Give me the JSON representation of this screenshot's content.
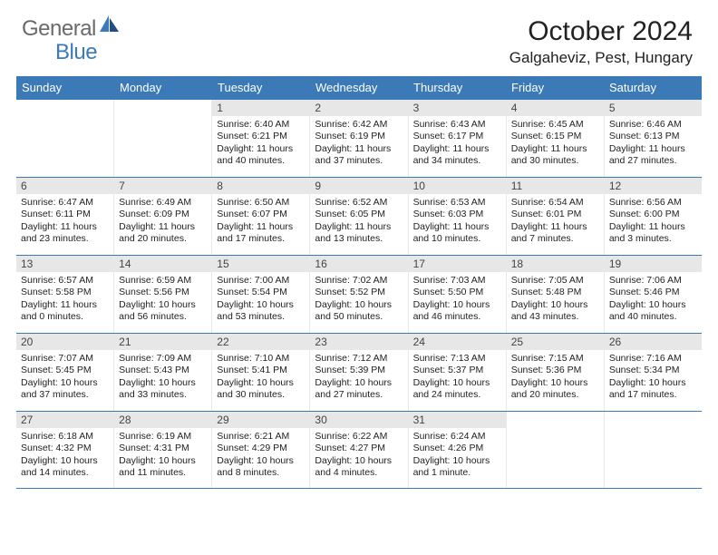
{
  "logo": {
    "general": "General",
    "blue": "Blue"
  },
  "title": "October 2024",
  "location": "Galgaheviz, Pest, Hungary",
  "colors": {
    "brand_blue": "#3b79b7",
    "logo_gray": "#6a6a6a",
    "daynum_bg": "#e7e7e7",
    "page_bg": "#ffffff",
    "text": "#222222"
  },
  "day_headers": [
    "Sunday",
    "Monday",
    "Tuesday",
    "Wednesday",
    "Thursday",
    "Friday",
    "Saturday"
  ],
  "weeks": [
    [
      {
        "num": "",
        "sunrise": "",
        "sunset": "",
        "daylight": ""
      },
      {
        "num": "",
        "sunrise": "",
        "sunset": "",
        "daylight": ""
      },
      {
        "num": "1",
        "sunrise": "Sunrise: 6:40 AM",
        "sunset": "Sunset: 6:21 PM",
        "daylight": "Daylight: 11 hours and 40 minutes."
      },
      {
        "num": "2",
        "sunrise": "Sunrise: 6:42 AM",
        "sunset": "Sunset: 6:19 PM",
        "daylight": "Daylight: 11 hours and 37 minutes."
      },
      {
        "num": "3",
        "sunrise": "Sunrise: 6:43 AM",
        "sunset": "Sunset: 6:17 PM",
        "daylight": "Daylight: 11 hours and 34 minutes."
      },
      {
        "num": "4",
        "sunrise": "Sunrise: 6:45 AM",
        "sunset": "Sunset: 6:15 PM",
        "daylight": "Daylight: 11 hours and 30 minutes."
      },
      {
        "num": "5",
        "sunrise": "Sunrise: 6:46 AM",
        "sunset": "Sunset: 6:13 PM",
        "daylight": "Daylight: 11 hours and 27 minutes."
      }
    ],
    [
      {
        "num": "6",
        "sunrise": "Sunrise: 6:47 AM",
        "sunset": "Sunset: 6:11 PM",
        "daylight": "Daylight: 11 hours and 23 minutes."
      },
      {
        "num": "7",
        "sunrise": "Sunrise: 6:49 AM",
        "sunset": "Sunset: 6:09 PM",
        "daylight": "Daylight: 11 hours and 20 minutes."
      },
      {
        "num": "8",
        "sunrise": "Sunrise: 6:50 AM",
        "sunset": "Sunset: 6:07 PM",
        "daylight": "Daylight: 11 hours and 17 minutes."
      },
      {
        "num": "9",
        "sunrise": "Sunrise: 6:52 AM",
        "sunset": "Sunset: 6:05 PM",
        "daylight": "Daylight: 11 hours and 13 minutes."
      },
      {
        "num": "10",
        "sunrise": "Sunrise: 6:53 AM",
        "sunset": "Sunset: 6:03 PM",
        "daylight": "Daylight: 11 hours and 10 minutes."
      },
      {
        "num": "11",
        "sunrise": "Sunrise: 6:54 AM",
        "sunset": "Sunset: 6:01 PM",
        "daylight": "Daylight: 11 hours and 7 minutes."
      },
      {
        "num": "12",
        "sunrise": "Sunrise: 6:56 AM",
        "sunset": "Sunset: 6:00 PM",
        "daylight": "Daylight: 11 hours and 3 minutes."
      }
    ],
    [
      {
        "num": "13",
        "sunrise": "Sunrise: 6:57 AM",
        "sunset": "Sunset: 5:58 PM",
        "daylight": "Daylight: 11 hours and 0 minutes."
      },
      {
        "num": "14",
        "sunrise": "Sunrise: 6:59 AM",
        "sunset": "Sunset: 5:56 PM",
        "daylight": "Daylight: 10 hours and 56 minutes."
      },
      {
        "num": "15",
        "sunrise": "Sunrise: 7:00 AM",
        "sunset": "Sunset: 5:54 PM",
        "daylight": "Daylight: 10 hours and 53 minutes."
      },
      {
        "num": "16",
        "sunrise": "Sunrise: 7:02 AM",
        "sunset": "Sunset: 5:52 PM",
        "daylight": "Daylight: 10 hours and 50 minutes."
      },
      {
        "num": "17",
        "sunrise": "Sunrise: 7:03 AM",
        "sunset": "Sunset: 5:50 PM",
        "daylight": "Daylight: 10 hours and 46 minutes."
      },
      {
        "num": "18",
        "sunrise": "Sunrise: 7:05 AM",
        "sunset": "Sunset: 5:48 PM",
        "daylight": "Daylight: 10 hours and 43 minutes."
      },
      {
        "num": "19",
        "sunrise": "Sunrise: 7:06 AM",
        "sunset": "Sunset: 5:46 PM",
        "daylight": "Daylight: 10 hours and 40 minutes."
      }
    ],
    [
      {
        "num": "20",
        "sunrise": "Sunrise: 7:07 AM",
        "sunset": "Sunset: 5:45 PM",
        "daylight": "Daylight: 10 hours and 37 minutes."
      },
      {
        "num": "21",
        "sunrise": "Sunrise: 7:09 AM",
        "sunset": "Sunset: 5:43 PM",
        "daylight": "Daylight: 10 hours and 33 minutes."
      },
      {
        "num": "22",
        "sunrise": "Sunrise: 7:10 AM",
        "sunset": "Sunset: 5:41 PM",
        "daylight": "Daylight: 10 hours and 30 minutes."
      },
      {
        "num": "23",
        "sunrise": "Sunrise: 7:12 AM",
        "sunset": "Sunset: 5:39 PM",
        "daylight": "Daylight: 10 hours and 27 minutes."
      },
      {
        "num": "24",
        "sunrise": "Sunrise: 7:13 AM",
        "sunset": "Sunset: 5:37 PM",
        "daylight": "Daylight: 10 hours and 24 minutes."
      },
      {
        "num": "25",
        "sunrise": "Sunrise: 7:15 AM",
        "sunset": "Sunset: 5:36 PM",
        "daylight": "Daylight: 10 hours and 20 minutes."
      },
      {
        "num": "26",
        "sunrise": "Sunrise: 7:16 AM",
        "sunset": "Sunset: 5:34 PM",
        "daylight": "Daylight: 10 hours and 17 minutes."
      }
    ],
    [
      {
        "num": "27",
        "sunrise": "Sunrise: 6:18 AM",
        "sunset": "Sunset: 4:32 PM",
        "daylight": "Daylight: 10 hours and 14 minutes."
      },
      {
        "num": "28",
        "sunrise": "Sunrise: 6:19 AM",
        "sunset": "Sunset: 4:31 PM",
        "daylight": "Daylight: 10 hours and 11 minutes."
      },
      {
        "num": "29",
        "sunrise": "Sunrise: 6:21 AM",
        "sunset": "Sunset: 4:29 PM",
        "daylight": "Daylight: 10 hours and 8 minutes."
      },
      {
        "num": "30",
        "sunrise": "Sunrise: 6:22 AM",
        "sunset": "Sunset: 4:27 PM",
        "daylight": "Daylight: 10 hours and 4 minutes."
      },
      {
        "num": "31",
        "sunrise": "Sunrise: 6:24 AM",
        "sunset": "Sunset: 4:26 PM",
        "daylight": "Daylight: 10 hours and 1 minute."
      },
      {
        "num": "",
        "sunrise": "",
        "sunset": "",
        "daylight": ""
      },
      {
        "num": "",
        "sunrise": "",
        "sunset": "",
        "daylight": ""
      }
    ]
  ]
}
